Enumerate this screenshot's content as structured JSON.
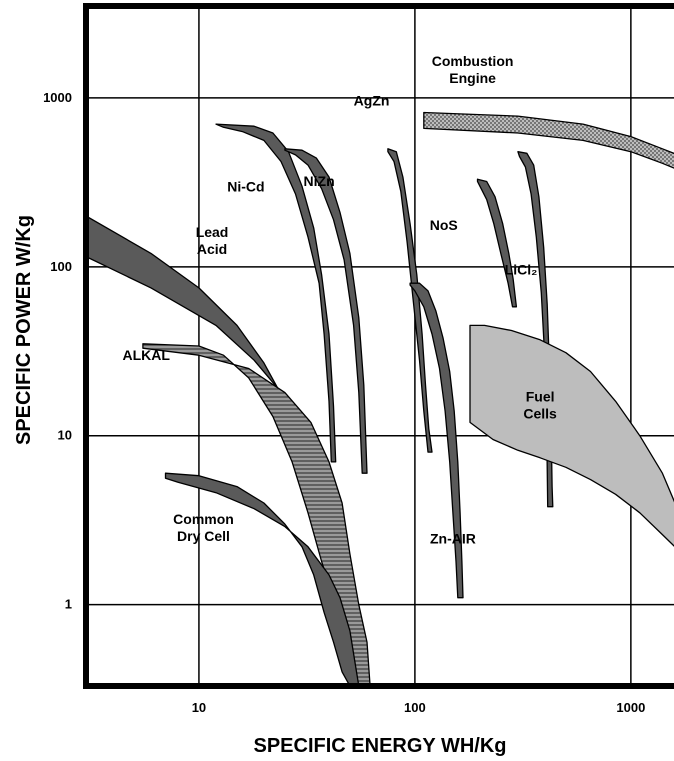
{
  "chart_data": {
    "type": "area",
    "title": "",
    "xlabel": "SPECIFIC ENERGY WH/Kg",
    "ylabel": "SPECIFIC POWER W/Kg",
    "x_scale": "log",
    "y_scale": "log",
    "xlim": [
      3,
      1800
    ],
    "ylim": [
      0.33,
      3500
    ],
    "grid": true,
    "x_ticks": [
      {
        "value": 10,
        "label": "10"
      },
      {
        "value": 100,
        "label": "100"
      },
      {
        "value": 1000,
        "label": "1000"
      }
    ],
    "y_ticks": [
      {
        "value": 1,
        "label": "1"
      },
      {
        "value": 10,
        "label": "10"
      },
      {
        "value": 100,
        "label": "100"
      },
      {
        "value": 1000,
        "label": "1000"
      }
    ],
    "series": [
      {
        "name": "Lead Acid",
        "label_lines": [
          "Lead",
          "Acid"
        ],
        "fill": "#5a5a5a",
        "pattern": "solid",
        "label_pos": [
          11.5,
          150
        ],
        "polygon": [
          [
            3,
            200
          ],
          [
            6,
            120
          ],
          [
            10,
            75
          ],
          [
            15,
            45
          ],
          [
            20,
            27
          ],
          [
            25,
            16
          ],
          [
            30,
            9
          ],
          [
            35,
            4.5
          ],
          [
            38,
            2.5
          ],
          [
            40,
            1.5
          ],
          [
            43,
            0.8
          ],
          [
            48,
            0.4
          ],
          [
            55,
            0.3
          ],
          [
            48,
            1.2
          ],
          [
            45,
            2
          ],
          [
            40,
            4.5
          ],
          [
            33,
            9
          ],
          [
            25,
            17
          ],
          [
            18,
            28
          ],
          [
            12,
            45
          ],
          [
            6,
            75
          ],
          [
            3,
            115
          ]
        ]
      },
      {
        "name": "ALKAL",
        "label_lines": [
          "ALKAL"
        ],
        "fill": "#9a9a9a",
        "pattern": "hatch",
        "label_pos": [
          5.7,
          28
        ],
        "polygon": [
          [
            5.5,
            35
          ],
          [
            10,
            34
          ],
          [
            13,
            30
          ],
          [
            17,
            22
          ],
          [
            22,
            13
          ],
          [
            27,
            7
          ],
          [
            32,
            3.5
          ],
          [
            37,
            1.8
          ],
          [
            43,
            1
          ],
          [
            48,
            0.55
          ],
          [
            53,
            0.33
          ],
          [
            62,
            0.33
          ],
          [
            60,
            0.6
          ],
          [
            55,
            1
          ],
          [
            50,
            2
          ],
          [
            46,
            4
          ],
          [
            40,
            7
          ],
          [
            33,
            12
          ],
          [
            25,
            18
          ],
          [
            17,
            25
          ],
          [
            10,
            30
          ],
          [
            5.5,
            33
          ]
        ]
      },
      {
        "name": "Common Dry Cell",
        "label_lines": [
          "Common",
          "Dry Cell"
        ],
        "fill": "#5a5a5a",
        "pattern": "solid",
        "label_pos": [
          10.5,
          3
        ],
        "polygon": [
          [
            7,
            6
          ],
          [
            10,
            5.8
          ],
          [
            15,
            5
          ],
          [
            20,
            4
          ],
          [
            25,
            3
          ],
          [
            30,
            2.2
          ],
          [
            34,
            1.5
          ],
          [
            38,
            0.9
          ],
          [
            42,
            0.6
          ],
          [
            46,
            0.4
          ],
          [
            50,
            0.33
          ],
          [
            55,
            0.33
          ],
          [
            50,
            0.7
          ],
          [
            45,
            1.1
          ],
          [
            40,
            1.5
          ],
          [
            32,
            2.2
          ],
          [
            25,
            2.9
          ],
          [
            18,
            3.7
          ],
          [
            12,
            4.6
          ],
          [
            8,
            5.3
          ],
          [
            7,
            5.6
          ]
        ]
      },
      {
        "name": "Ni-Cd",
        "label_lines": [
          "Ni-Cd"
        ],
        "fill": "#5a5a5a",
        "pattern": "solid",
        "label_pos": [
          16.5,
          280
        ],
        "polygon": [
          [
            12,
            700
          ],
          [
            18,
            680
          ],
          [
            22,
            620
          ],
          [
            26,
            480
          ],
          [
            30,
            300
          ],
          [
            34,
            170
          ],
          [
            37,
            90
          ],
          [
            40,
            40
          ],
          [
            42,
            15
          ],
          [
            43,
            7
          ],
          [
            41,
            7
          ],
          [
            40,
            16
          ],
          [
            38,
            40
          ],
          [
            36,
            80
          ],
          [
            32,
            150
          ],
          [
            28,
            270
          ],
          [
            24,
            420
          ],
          [
            20,
            560
          ],
          [
            16,
            630
          ],
          [
            13,
            670
          ]
        ]
      },
      {
        "name": "NiZn",
        "label_lines": [
          "NiZn"
        ],
        "fill": "#5a5a5a",
        "pattern": "solid",
        "label_pos": [
          36,
          300
        ],
        "polygon": [
          [
            25,
            500
          ],
          [
            30,
            490
          ],
          [
            35,
            440
          ],
          [
            40,
            340
          ],
          [
            45,
            210
          ],
          [
            50,
            120
          ],
          [
            55,
            50
          ],
          [
            58,
            20
          ],
          [
            60,
            6
          ],
          [
            57,
            6
          ],
          [
            55,
            18
          ],
          [
            52,
            45
          ],
          [
            47,
            110
          ],
          [
            42,
            190
          ],
          [
            37,
            290
          ],
          [
            32,
            400
          ],
          [
            28,
            460
          ],
          [
            25,
            490
          ]
        ]
      },
      {
        "name": "AgZn",
        "label_lines": [
          "AgZn"
        ],
        "fill": "#5a5a5a",
        "pattern": "solid",
        "label_pos": [
          63,
          900
        ],
        "polygon": [
          [
            75,
            500
          ],
          [
            82,
            480
          ],
          [
            88,
            340
          ],
          [
            95,
            180
          ],
          [
            102,
            90
          ],
          [
            108,
            40
          ],
          [
            112,
            20
          ],
          [
            116,
            11
          ],
          [
            120,
            8
          ],
          [
            115,
            8
          ],
          [
            110,
            14
          ],
          [
            105,
            28
          ],
          [
            98,
            65
          ],
          [
            92,
            140
          ],
          [
            86,
            280
          ],
          [
            80,
            420
          ],
          [
            75,
            480
          ]
        ]
      },
      {
        "name": "Zn-AIR",
        "label_lines": [
          "Zn-AIR"
        ],
        "fill": "#5a5a5a",
        "pattern": "solid",
        "label_pos": [
          150,
          2.3
        ],
        "polygon": [
          [
            95,
            80
          ],
          [
            105,
            80
          ],
          [
            115,
            72
          ],
          [
            125,
            55
          ],
          [
            135,
            38
          ],
          [
            145,
            24
          ],
          [
            152,
            14
          ],
          [
            158,
            7
          ],
          [
            162,
            3.5
          ],
          [
            165,
            1.8
          ],
          [
            167,
            1.1
          ],
          [
            158,
            1.1
          ],
          [
            155,
            1.8
          ],
          [
            150,
            3.5
          ],
          [
            145,
            7
          ],
          [
            138,
            14
          ],
          [
            130,
            25
          ],
          [
            120,
            40
          ],
          [
            110,
            58
          ],
          [
            100,
            72
          ],
          [
            95,
            78
          ]
        ]
      },
      {
        "name": "NoS",
        "label_lines": [
          "NoS"
        ],
        "fill": "#5a5a5a",
        "pattern": "solid",
        "label_pos": [
          136,
          165
        ],
        "polygon": [
          [
            195,
            330
          ],
          [
            215,
            320
          ],
          [
            235,
            260
          ],
          [
            255,
            180
          ],
          [
            272,
            120
          ],
          [
            285,
            85
          ],
          [
            295,
            58
          ],
          [
            283,
            58
          ],
          [
            270,
            80
          ],
          [
            250,
            120
          ],
          [
            232,
            180
          ],
          [
            215,
            250
          ],
          [
            200,
            300
          ],
          [
            195,
            320
          ]
        ]
      },
      {
        "name": "LiCl2",
        "label_lines": [
          "LiCl₂"
        ],
        "fill": "#5a5a5a",
        "pattern": "solid",
        "label_pos": [
          310,
          90
        ],
        "polygon": [
          [
            300,
            480
          ],
          [
            330,
            470
          ],
          [
            355,
            400
          ],
          [
            375,
            260
          ],
          [
            395,
            130
          ],
          [
            410,
            60
          ],
          [
            420,
            25
          ],
          [
            428,
            10
          ],
          [
            432,
            5
          ],
          [
            435,
            3.8
          ],
          [
            412,
            3.8
          ],
          [
            408,
            10
          ],
          [
            400,
            28
          ],
          [
            385,
            70
          ],
          [
            365,
            150
          ],
          [
            345,
            270
          ],
          [
            325,
            390
          ],
          [
            305,
            450
          ]
        ]
      },
      {
        "name": "Fuel Cells",
        "label_lines": [
          "Fuel",
          "Cells"
        ],
        "fill": "#bdbdbd",
        "pattern": "solid",
        "label_pos": [
          380,
          16
        ],
        "polygon": [
          [
            180,
            45
          ],
          [
            210,
            45
          ],
          [
            280,
            42
          ],
          [
            380,
            37
          ],
          [
            500,
            31
          ],
          [
            650,
            24
          ],
          [
            850,
            16
          ],
          [
            1100,
            10
          ],
          [
            1400,
            6
          ],
          [
            1800,
            2.8
          ],
          [
            1800,
            1.9
          ],
          [
            1400,
            2.6
          ],
          [
            1100,
            3.5
          ],
          [
            850,
            4.5
          ],
          [
            650,
            5.5
          ],
          [
            500,
            6.5
          ],
          [
            380,
            7.4
          ],
          [
            300,
            8.2
          ],
          [
            230,
            9.5
          ],
          [
            180,
            12
          ]
        ]
      },
      {
        "name": "Combustion Engine",
        "label_lines": [
          "Combustion",
          "Engine"
        ],
        "fill": "#9a9a9a",
        "pattern": "dots",
        "label_pos": [
          185,
          1550
        ],
        "polygon": [
          [
            110,
            820
          ],
          [
            300,
            780
          ],
          [
            600,
            700
          ],
          [
            1000,
            590
          ],
          [
            1400,
            500
          ],
          [
            1800,
            440
          ],
          [
            1800,
            360
          ],
          [
            1400,
            410
          ],
          [
            1000,
            480
          ],
          [
            600,
            560
          ],
          [
            300,
            620
          ],
          [
            110,
            660
          ]
        ]
      }
    ]
  }
}
